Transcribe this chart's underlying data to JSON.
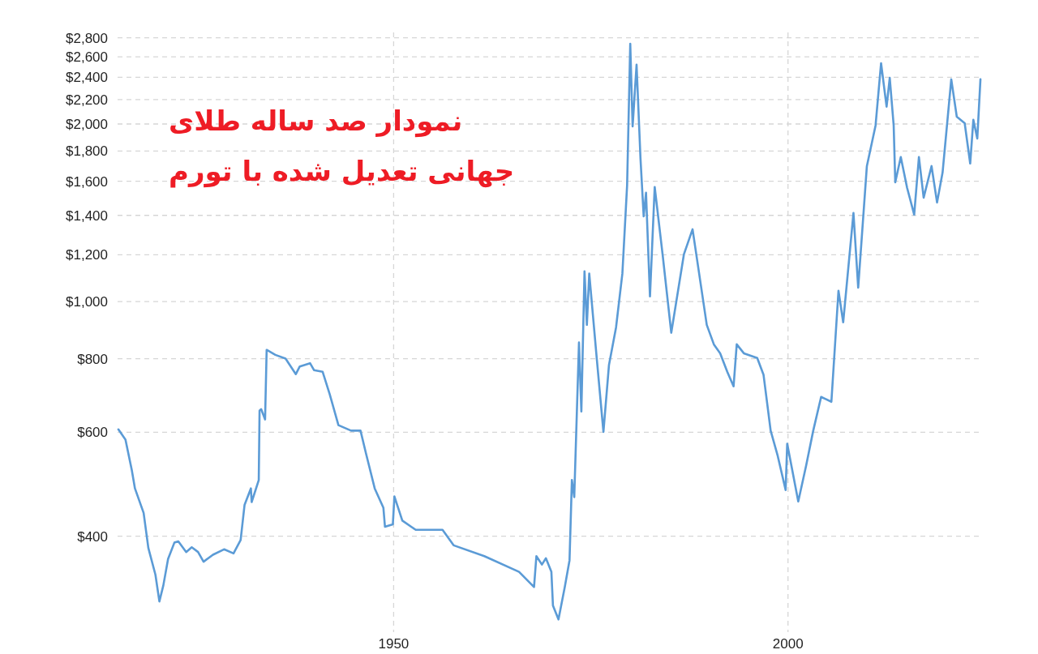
{
  "chart_data": {
    "type": "line",
    "title": "نمودار صد ساله طلای جهانی تعدیل شده با تورم",
    "x": [
      1915.1,
      1916.0,
      1916.8,
      1917.2,
      1918.3,
      1918.9,
      1919.8,
      1920.3,
      1920.8,
      1921.4,
      1922.2,
      1922.7,
      1923.7,
      1924.4,
      1925.2,
      1925.9,
      1927.1,
      1928.5,
      1929.7,
      1930.6,
      1931.1,
      1931.9,
      1932.0,
      1932.9,
      1933.0,
      1933.2,
      1933.7,
      1933.9,
      1935.0,
      1936.3,
      1937.6,
      1938.1,
      1939.4,
      1939.9,
      1941.0,
      1941.9,
      1943.0,
      1944.6,
      1945.8,
      1946.5,
      1947.6,
      1948.7,
      1948.9,
      1949.9,
      1950.1,
      1951.1,
      1952.8,
      1956.2,
      1957.6,
      1961.5,
      1965.9,
      1967.8,
      1968.1,
      1968.8,
      1969.3,
      1970.0,
      1970.2,
      1970.9,
      1971.7,
      1972.3,
      1972.6,
      1972.9,
      1973.5,
      1973.8,
      1974.2,
      1974.5,
      1974.8,
      1975.7,
      1976.6,
      1977.3,
      1978.2,
      1979.0,
      1979.6,
      1980.0,
      1980.3,
      1980.8,
      1981.3,
      1981.7,
      1982.0,
      1982.5,
      1983.1,
      1984.1,
      1985.2,
      1986.8,
      1987.9,
      1989.7,
      1990.6,
      1991.4,
      1992.3,
      1993.1,
      1993.5,
      1994.4,
      1996.1,
      1996.9,
      1997.8,
      1998.7,
      1999.7,
      1999.9,
      2001.3,
      2002.3,
      2003.2,
      2004.2,
      2005.5,
      2006.4,
      2007.0,
      2008.3,
      2008.9,
      2010.0,
      2011.1,
      2011.8,
      2012.5,
      2012.9,
      2013.4,
      2013.6,
      2014.3,
      2015.1,
      2016.0,
      2016.6,
      2017.2,
      2018.2,
      2018.9,
      2019.6,
      2020.7,
      2021.4,
      2022.4,
      2023.1,
      2023.5,
      2024.0,
      2024.4
    ],
    "series": [
      {
        "color": "#5b9bd6",
        "values": [
          607,
          583,
          518,
          482,
          438,
          382,
          344,
          310,
          330,
          366,
          390,
          392,
          376,
          383,
          376,
          362,
          372,
          380,
          374,
          394,
          452,
          482,
          457,
          498,
          653,
          657,
          631,
          828,
          812,
          800,
          753,
          776,
          786,
          765,
          760,
          696,
          617,
          604,
          604,
          552,
          482,
          447,
          415,
          419,
          467,
          425,
          410,
          410,
          386,
          370,
          348,
          328,
          370,
          358,
          367,
          348,
          305,
          289,
          328,
          364,
          498,
          466,
          852,
          651,
          1125,
          913,
          1115,
          815,
          601,
          780,
          904,
          1115,
          1573,
          2736,
          1982,
          2521,
          1746,
          1395,
          1529,
          1020,
          1564,
          1202,
          885,
          1202,
          1326,
          913,
          846,
          817,
          760,
          718,
          846,
          817,
          802,
          751,
          604,
          547,
          479,
          574,
          458,
          527,
          604,
          689,
          676,
          1043,
          922,
          1413,
          1056,
          1697,
          1988,
          2536,
          2140,
          2395,
          1988,
          1593,
          1758,
          1559,
          1404,
          1758,
          1500,
          1697,
          1472,
          1655,
          2381,
          2058,
          2007,
          1714,
          2033,
          1890,
          2381
        ]
      }
    ],
    "xlim": [
      1915,
      2024.5
    ],
    "xticks": [
      1950,
      2000
    ],
    "ylim": [
      275,
      2860
    ],
    "yticks": [
      {
        "value": 400,
        "label": "$400"
      },
      {
        "value": 600,
        "label": "$600"
      },
      {
        "value": 800,
        "label": "$800"
      },
      {
        "value": 1000,
        "label": "$1,000"
      },
      {
        "value": 1200,
        "label": "$1,200"
      },
      {
        "value": 1400,
        "label": "$1,400"
      },
      {
        "value": 1600,
        "label": "$1,600"
      },
      {
        "value": 1800,
        "label": "$1,800"
      },
      {
        "value": 2000,
        "label": "$2,000"
      },
      {
        "value": 2200,
        "label": "$2,200"
      },
      {
        "value": 2400,
        "label": "$2,400"
      },
      {
        "value": 2600,
        "label": "$2,600"
      },
      {
        "value": 2800,
        "label": "$2,800"
      }
    ],
    "log": true,
    "grid": true
  }
}
